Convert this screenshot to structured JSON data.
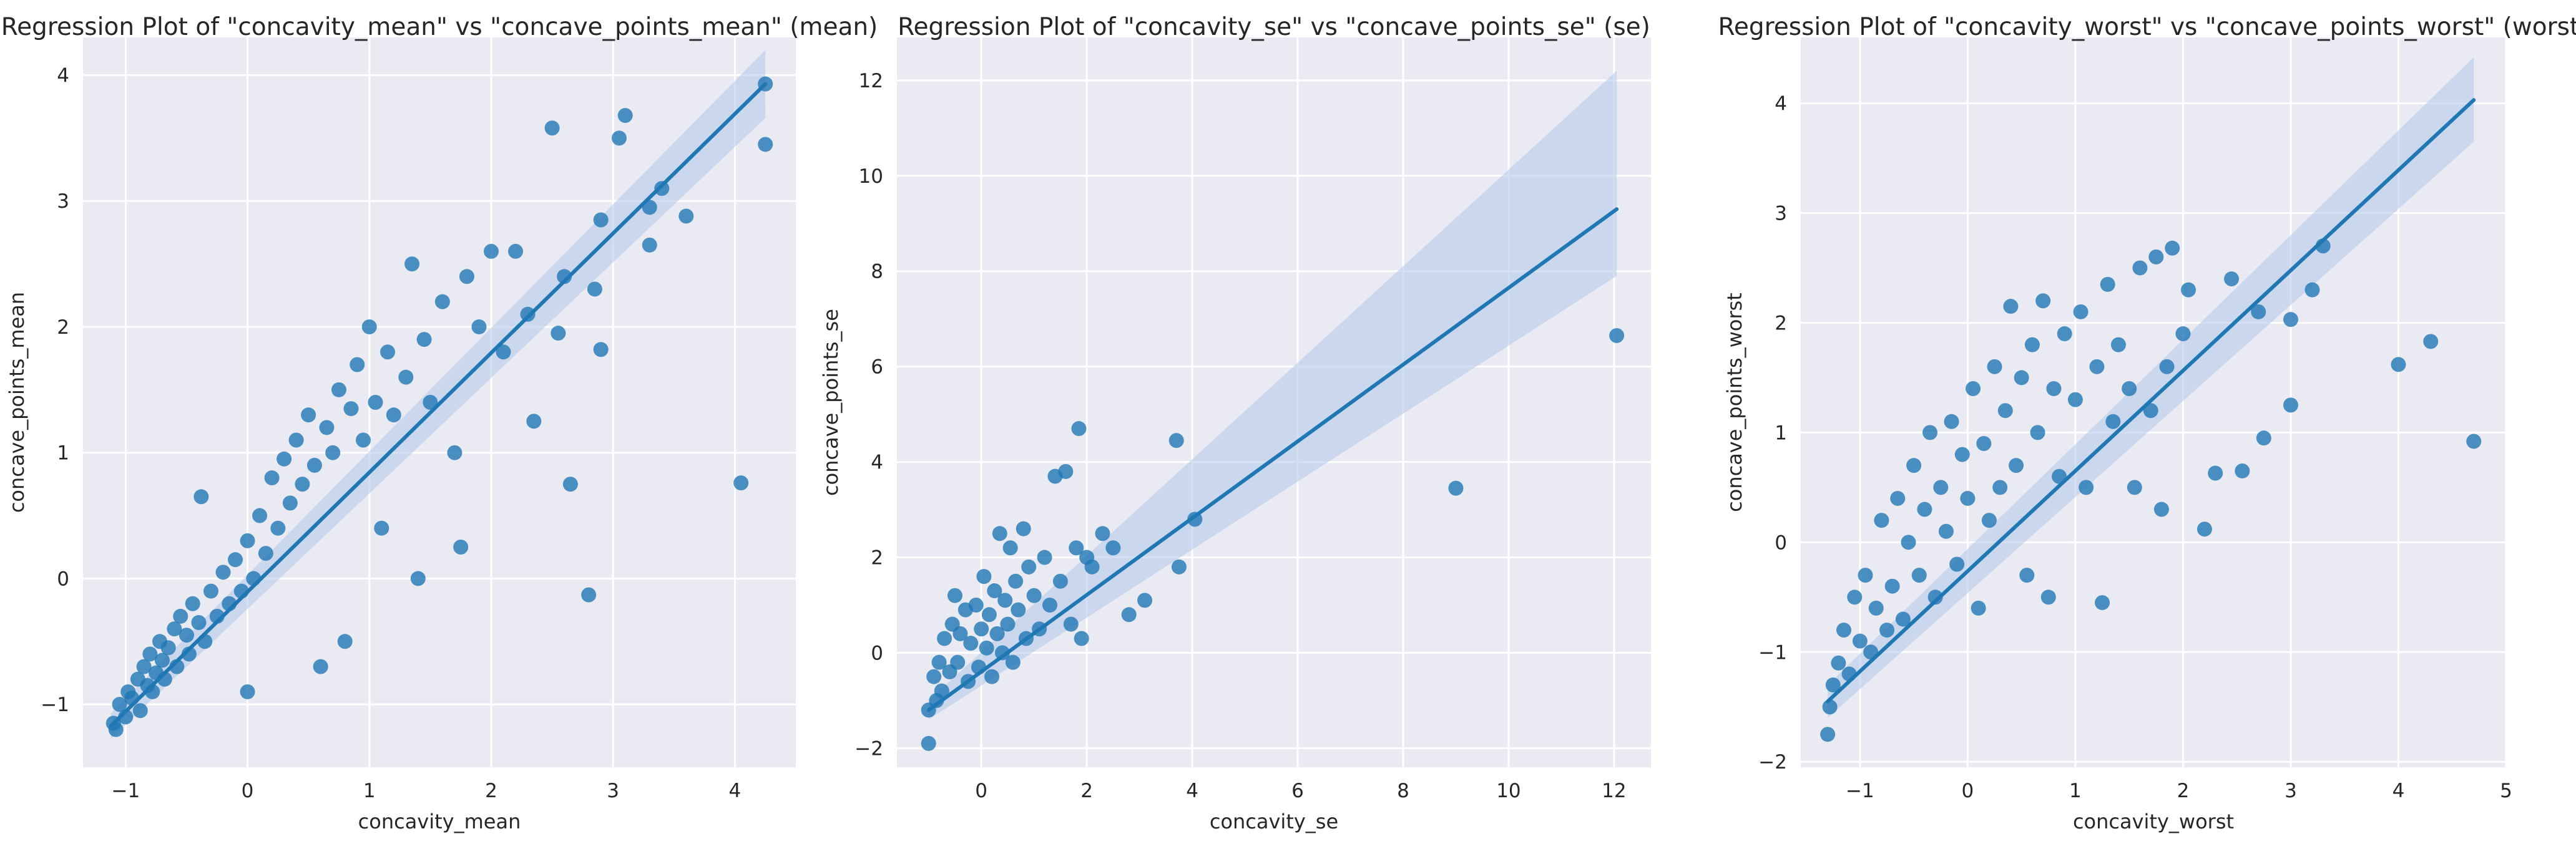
{
  "chart_data": [
    {
      "type": "scatter",
      "title": "Regression Plot of \"concavity_mean\" vs \"concave_points_mean\" (mean)",
      "xlabel": "concavity_mean",
      "ylabel": "concave_points_mean",
      "xlim": [
        -1.35,
        4.5
      ],
      "ylim": [
        -1.5,
        4.3
      ],
      "xticks": [
        -1,
        0,
        1,
        2,
        3,
        4
      ],
      "yticks": [
        -1,
        0,
        1,
        2,
        3,
        4
      ],
      "grid": true,
      "marker_color": "#1f77b4",
      "line_color": "#1f77b4",
      "band_color": "#aec7e8",
      "regression": {
        "x": [
          -1.12,
          4.25
        ],
        "y": [
          -1.17,
          3.93
        ],
        "ci_start": [
          -1.27,
          -1.07
        ],
        "ci_end": [
          3.66,
          4.2
        ]
      },
      "points": [
        [
          -1.1,
          -1.15
        ],
        [
          -1.08,
          -1.2
        ],
        [
          -1.05,
          -1.0
        ],
        [
          -1.0,
          -1.1
        ],
        [
          -0.98,
          -0.9
        ],
        [
          -0.95,
          -0.95
        ],
        [
          -0.9,
          -0.8
        ],
        [
          -0.88,
          -1.05
        ],
        [
          -0.85,
          -0.7
        ],
        [
          -0.82,
          -0.85
        ],
        [
          -0.8,
          -0.6
        ],
        [
          -0.78,
          -0.9
        ],
        [
          -0.75,
          -0.75
        ],
        [
          -0.72,
          -0.5
        ],
        [
          -0.7,
          -0.65
        ],
        [
          -0.68,
          -0.8
        ],
        [
          -0.65,
          -0.55
        ],
        [
          -0.6,
          -0.4
        ],
        [
          -0.58,
          -0.7
        ],
        [
          -0.55,
          -0.3
        ],
        [
          -0.5,
          -0.45
        ],
        [
          -0.48,
          -0.6
        ],
        [
          -0.45,
          -0.2
        ],
        [
          -0.4,
          -0.35
        ],
        [
          -0.38,
          0.65
        ],
        [
          -0.35,
          -0.5
        ],
        [
          -0.3,
          -0.1
        ],
        [
          -0.25,
          -0.3
        ],
        [
          -0.2,
          0.05
        ],
        [
          -0.15,
          -0.2
        ],
        [
          -0.1,
          0.15
        ],
        [
          -0.05,
          -0.1
        ],
        [
          0.0,
          0.3
        ],
        [
          0.0,
          -0.9
        ],
        [
          0.05,
          0.0
        ],
        [
          0.1,
          0.5
        ],
        [
          0.15,
          0.2
        ],
        [
          0.2,
          0.8
        ],
        [
          0.25,
          0.4
        ],
        [
          0.3,
          0.95
        ],
        [
          0.35,
          0.6
        ],
        [
          0.4,
          1.1
        ],
        [
          0.45,
          0.75
        ],
        [
          0.5,
          1.3
        ],
        [
          0.55,
          0.9
        ],
        [
          0.6,
          -0.7
        ],
        [
          0.65,
          1.2
        ],
        [
          0.7,
          1.0
        ],
        [
          0.75,
          1.5
        ],
        [
          0.8,
          -0.5
        ],
        [
          0.85,
          1.35
        ],
        [
          0.9,
          1.7
        ],
        [
          0.95,
          1.1
        ],
        [
          1.0,
          2.0
        ],
        [
          1.05,
          1.4
        ],
        [
          1.1,
          0.4
        ],
        [
          1.15,
          1.8
        ],
        [
          1.2,
          1.3
        ],
        [
          1.3,
          1.6
        ],
        [
          1.35,
          2.5
        ],
        [
          1.4,
          0.0
        ],
        [
          1.45,
          1.9
        ],
        [
          1.5,
          1.4
        ],
        [
          1.6,
          2.2
        ],
        [
          1.7,
          1.0
        ],
        [
          1.75,
          0.25
        ],
        [
          1.8,
          2.4
        ],
        [
          1.9,
          2.0
        ],
        [
          2.0,
          2.6
        ],
        [
          2.1,
          1.8
        ],
        [
          2.2,
          2.6
        ],
        [
          2.3,
          2.1
        ],
        [
          2.35,
          1.25
        ],
        [
          2.5,
          3.58
        ],
        [
          2.55,
          1.95
        ],
        [
          2.6,
          2.4
        ],
        [
          2.65,
          0.75
        ],
        [
          2.8,
          -0.13
        ],
        [
          2.85,
          2.3
        ],
        [
          2.9,
          2.85
        ],
        [
          2.9,
          1.82
        ],
        [
          3.05,
          3.5
        ],
        [
          3.1,
          3.68
        ],
        [
          3.3,
          2.65
        ],
        [
          3.3,
          2.95
        ],
        [
          3.4,
          3.1
        ],
        [
          3.6,
          2.88
        ],
        [
          4.05,
          0.76
        ],
        [
          4.25,
          3.45
        ],
        [
          4.25,
          3.93
        ]
      ]
    },
    {
      "type": "scatter",
      "title": "Regression Plot of \"concavity_se\" vs \"concave_points_se\" (se)",
      "xlabel": "concavity_se",
      "ylabel": "concave_points_se",
      "xlim": [
        -1.6,
        12.7
      ],
      "ylim": [
        -2.4,
        12.9
      ],
      "xticks": [
        0,
        2,
        4,
        6,
        8,
        10,
        12
      ],
      "yticks": [
        -2,
        0,
        2,
        4,
        6,
        8,
        10,
        12
      ],
      "grid": true,
      "marker_color": "#1f77b4",
      "line_color": "#1f77b4",
      "band_color": "#aec7e8",
      "regression": {
        "x": [
          -1.0,
          12.05
        ],
        "y": [
          -1.2,
          9.3
        ],
        "ci_start": [
          -1.4,
          -1.0
        ],
        "ci_end": [
          7.9,
          12.2
        ]
      },
      "points": [
        [
          -1.0,
          -1.9
        ],
        [
          -1.0,
          -1.2
        ],
        [
          -0.9,
          -0.5
        ],
        [
          -0.85,
          -1.0
        ],
        [
          -0.8,
          -0.2
        ],
        [
          -0.75,
          -0.8
        ],
        [
          -0.7,
          0.3
        ],
        [
          -0.6,
          -0.4
        ],
        [
          -0.55,
          0.6
        ],
        [
          -0.5,
          1.2
        ],
        [
          -0.45,
          -0.2
        ],
        [
          -0.4,
          0.4
        ],
        [
          -0.3,
          0.9
        ],
        [
          -0.25,
          -0.6
        ],
        [
          -0.2,
          0.2
        ],
        [
          -0.1,
          1.0
        ],
        [
          -0.05,
          -0.3
        ],
        [
          0.0,
          0.5
        ],
        [
          0.05,
          1.6
        ],
        [
          0.1,
          0.1
        ],
        [
          0.15,
          0.8
        ],
        [
          0.2,
          -0.5
        ],
        [
          0.25,
          1.3
        ],
        [
          0.3,
          0.4
        ],
        [
          0.35,
          2.5
        ],
        [
          0.4,
          0.0
        ],
        [
          0.45,
          1.1
        ],
        [
          0.5,
          0.6
        ],
        [
          0.55,
          2.2
        ],
        [
          0.6,
          -0.2
        ],
        [
          0.65,
          1.5
        ],
        [
          0.7,
          0.9
        ],
        [
          0.8,
          2.6
        ],
        [
          0.85,
          0.3
        ],
        [
          0.9,
          1.8
        ],
        [
          1.0,
          1.2
        ],
        [
          1.1,
          0.5
        ],
        [
          1.2,
          2.0
        ],
        [
          1.3,
          1.0
        ],
        [
          1.4,
          3.7
        ],
        [
          1.5,
          1.5
        ],
        [
          1.6,
          3.8
        ],
        [
          1.7,
          0.6
        ],
        [
          1.8,
          2.2
        ],
        [
          1.85,
          4.7
        ],
        [
          1.9,
          0.3
        ],
        [
          2.0,
          2.0
        ],
        [
          2.1,
          1.8
        ],
        [
          2.3,
          2.5
        ],
        [
          2.5,
          2.2
        ],
        [
          2.8,
          0.8
        ],
        [
          3.1,
          1.1
        ],
        [
          3.7,
          4.45
        ],
        [
          3.75,
          1.8
        ],
        [
          4.05,
          2.8
        ],
        [
          9.0,
          3.45
        ],
        [
          12.05,
          6.65
        ]
      ]
    },
    {
      "type": "scatter",
      "title": "Regression Plot of \"concavity_worst\" vs \"concave_points_worst\" (worst)",
      "xlabel": "concavity_worst",
      "ylabel": "concave_points_worst",
      "xlim": [
        -1.55,
        5.0
      ],
      "ylim": [
        -2.05,
        4.6
      ],
      "xticks": [
        -1,
        0,
        1,
        2,
        3,
        4,
        5
      ],
      "yticks": [
        -2,
        -1,
        0,
        1,
        2,
        3,
        4
      ],
      "grid": true,
      "marker_color": "#1f77b4",
      "line_color": "#1f77b4",
      "band_color": "#aec7e8",
      "regression": {
        "x": [
          -1.3,
          4.7
        ],
        "y": [
          -1.45,
          4.03
        ],
        "ci_start": [
          -1.6,
          -1.3
        ],
        "ci_end": [
          3.65,
          4.42
        ]
      },
      "points": [
        [
          -1.3,
          -1.75
        ],
        [
          -1.28,
          -1.5
        ],
        [
          -1.25,
          -1.3
        ],
        [
          -1.2,
          -1.1
        ],
        [
          -1.15,
          -0.8
        ],
        [
          -1.1,
          -1.2
        ],
        [
          -1.05,
          -0.5
        ],
        [
          -1.0,
          -0.9
        ],
        [
          -0.95,
          -0.3
        ],
        [
          -0.9,
          -1.0
        ],
        [
          -0.85,
          -0.6
        ],
        [
          -0.8,
          0.2
        ],
        [
          -0.75,
          -0.8
        ],
        [
          -0.7,
          -0.4
        ],
        [
          -0.65,
          0.4
        ],
        [
          -0.6,
          -0.7
        ],
        [
          -0.55,
          0.0
        ],
        [
          -0.5,
          0.7
        ],
        [
          -0.45,
          -0.3
        ],
        [
          -0.4,
          0.3
        ],
        [
          -0.35,
          1.0
        ],
        [
          -0.3,
          -0.5
        ],
        [
          -0.25,
          0.5
        ],
        [
          -0.2,
          0.1
        ],
        [
          -0.15,
          1.1
        ],
        [
          -0.1,
          -0.2
        ],
        [
          -0.05,
          0.8
        ],
        [
          0.0,
          0.4
        ],
        [
          0.05,
          1.4
        ],
        [
          0.1,
          -0.6
        ],
        [
          0.15,
          0.9
        ],
        [
          0.2,
          0.2
        ],
        [
          0.25,
          1.6
        ],
        [
          0.3,
          0.5
        ],
        [
          0.35,
          1.2
        ],
        [
          0.4,
          2.15
        ],
        [
          0.45,
          0.7
        ],
        [
          0.5,
          1.5
        ],
        [
          0.55,
          -0.3
        ],
        [
          0.6,
          1.8
        ],
        [
          0.65,
          1.0
        ],
        [
          0.7,
          2.2
        ],
        [
          0.75,
          -0.5
        ],
        [
          0.8,
          1.4
        ],
        [
          0.85,
          0.6
        ],
        [
          0.9,
          1.9
        ],
        [
          1.0,
          1.3
        ],
        [
          1.05,
          2.1
        ],
        [
          1.1,
          0.5
        ],
        [
          1.2,
          1.6
        ],
        [
          1.25,
          -0.55
        ],
        [
          1.3,
          2.35
        ],
        [
          1.35,
          1.1
        ],
        [
          1.4,
          1.8
        ],
        [
          1.5,
          1.4
        ],
        [
          1.55,
          0.5
        ],
        [
          1.6,
          2.5
        ],
        [
          1.7,
          1.2
        ],
        [
          1.75,
          2.6
        ],
        [
          1.8,
          0.3
        ],
        [
          1.85,
          1.6
        ],
        [
          1.9,
          2.68
        ],
        [
          2.0,
          1.9
        ],
        [
          2.05,
          2.3
        ],
        [
          2.2,
          0.12
        ],
        [
          2.3,
          0.63
        ],
        [
          2.45,
          2.4
        ],
        [
          2.55,
          0.65
        ],
        [
          2.7,
          2.1
        ],
        [
          2.75,
          0.95
        ],
        [
          3.0,
          1.25
        ],
        [
          3.0,
          2.03
        ],
        [
          3.2,
          2.3
        ],
        [
          3.3,
          2.7
        ],
        [
          4.0,
          1.62
        ],
        [
          4.3,
          1.83
        ],
        [
          4.7,
          0.92
        ]
      ]
    }
  ]
}
